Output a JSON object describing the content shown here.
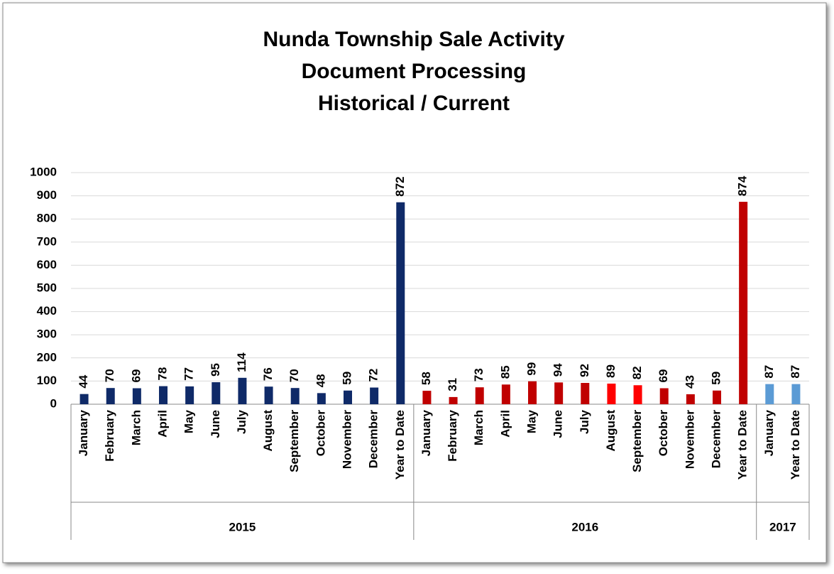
{
  "chart_data": {
    "type": "bar",
    "title": [
      "Nunda Township Sale Activity",
      "Document Processing",
      "Historical / Current"
    ],
    "groups": [
      {
        "name": "2015",
        "categories": [
          "January",
          "February",
          "March",
          "April",
          "May",
          "June",
          "July",
          "August",
          "September",
          "October",
          "November",
          "December",
          "Year to Date"
        ],
        "values": [
          44,
          70,
          69,
          78,
          77,
          95,
          114,
          76,
          70,
          48,
          59,
          72,
          872
        ],
        "colors": [
          "#0f2a68",
          "#0f2a68",
          "#0f2a68",
          "#0f2a68",
          "#0f2a68",
          "#0f2a68",
          "#0f2a68",
          "#0f2a68",
          "#0f2a68",
          "#0f2a68",
          "#0f2a68",
          "#0f2a68",
          "#0f2a68"
        ]
      },
      {
        "name": "2016",
        "categories": [
          "January",
          "February",
          "March",
          "April",
          "May",
          "June",
          "July",
          "August",
          "September",
          "October",
          "November",
          "December",
          "Year to Date"
        ],
        "values": [
          58,
          31,
          73,
          85,
          99,
          94,
          92,
          89,
          82,
          69,
          43,
          59,
          874
        ],
        "colors": [
          "#c00000",
          "#c00000",
          "#c00000",
          "#c00000",
          "#c00000",
          "#c00000",
          "#c00000",
          "#ff0000",
          "#ff0000",
          "#c00000",
          "#c00000",
          "#c00000",
          "#c00000"
        ]
      },
      {
        "name": "2017",
        "categories": [
          "January",
          "Year to Date"
        ],
        "values": [
          87,
          87
        ],
        "colors": [
          "#5b9bd5",
          "#5b9bd5"
        ]
      }
    ],
    "ylim": [
      0,
      1000
    ],
    "yticks": [
      0,
      100,
      200,
      300,
      400,
      500,
      600,
      700,
      800,
      900,
      1000
    ],
    "grid": true
  }
}
